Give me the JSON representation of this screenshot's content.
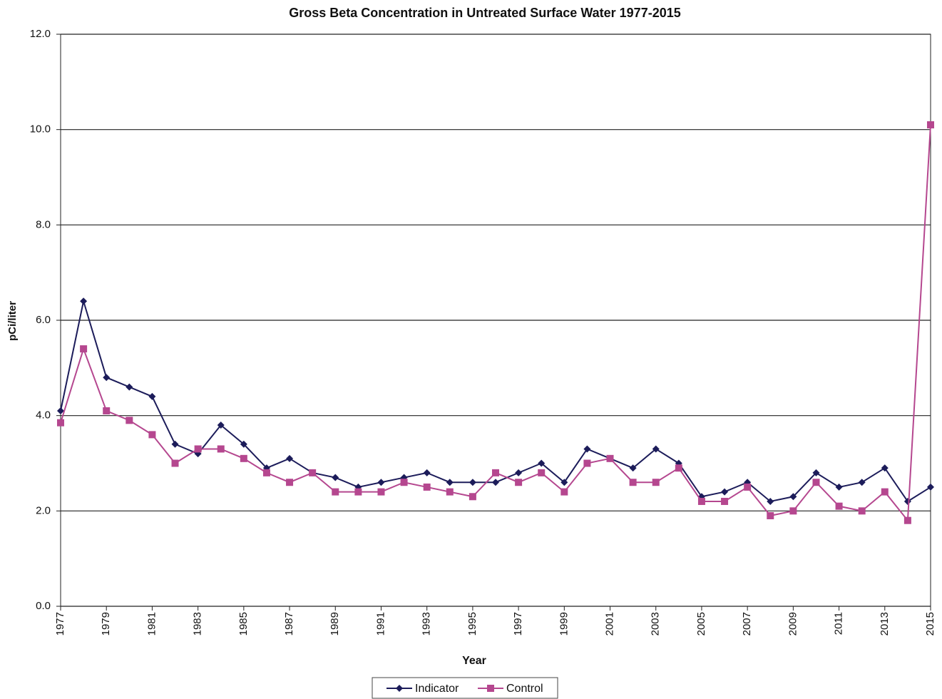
{
  "chart_data": {
    "type": "line",
    "title": "Gross Beta Concentration in Untreated Surface Water 1977-2015",
    "xlabel": "Year",
    "ylabel": "pCi/liter",
    "x": [
      1977,
      1978,
      1979,
      1980,
      1981,
      1982,
      1983,
      1984,
      1985,
      1986,
      1987,
      1988,
      1989,
      1990,
      1991,
      1992,
      1993,
      1994,
      1995,
      1996,
      1997,
      1998,
      1999,
      2000,
      2001,
      2002,
      2003,
      2004,
      2005,
      2006,
      2007,
      2008,
      2009,
      2010,
      2011,
      2012,
      2013,
      2014,
      2015
    ],
    "series": [
      {
        "name": "Indicator",
        "color": "#1c1c5a",
        "marker": "diamond",
        "values": [
          4.1,
          6.4,
          4.8,
          4.6,
          4.4,
          3.4,
          3.2,
          3.8,
          3.4,
          2.9,
          3.1,
          2.8,
          2.7,
          2.5,
          2.6,
          2.7,
          2.8,
          2.6,
          2.6,
          2.6,
          2.8,
          3.0,
          2.6,
          3.3,
          3.1,
          2.9,
          3.3,
          3.0,
          2.3,
          2.4,
          2.6,
          2.2,
          2.3,
          2.8,
          2.5,
          2.6,
          2.9,
          2.2,
          2.5
        ]
      },
      {
        "name": "Control",
        "color": "#b5478f",
        "marker": "square",
        "values": [
          3.85,
          5.4,
          4.1,
          3.9,
          3.6,
          3.0,
          3.3,
          3.3,
          3.1,
          2.8,
          2.6,
          2.8,
          2.4,
          2.4,
          2.4,
          2.6,
          2.5,
          2.4,
          2.3,
          2.8,
          2.6,
          2.8,
          2.4,
          3.0,
          3.1,
          2.6,
          2.6,
          2.9,
          2.2,
          2.2,
          2.5,
          1.9,
          2.0,
          2.6,
          2.1,
          2.0,
          2.4,
          1.8,
          10.1
        ]
      }
    ],
    "xlim": [
      1977,
      2015
    ],
    "xticks": [
      1977,
      1979,
      1981,
      1983,
      1985,
      1987,
      1989,
      1991,
      1993,
      1995,
      1997,
      1999,
      2001,
      2003,
      2005,
      2007,
      2009,
      2011,
      2013,
      2015
    ],
    "ylim": [
      0,
      12
    ],
    "yticks": [
      {
        "value": 0,
        "label": "0.0"
      },
      {
        "value": 2,
        "label": "2.0"
      },
      {
        "value": 4,
        "label": "4.0"
      },
      {
        "value": 6,
        "label": "6.0"
      },
      {
        "value": 8,
        "label": "8.0"
      },
      {
        "value": 10,
        "label": "10.0"
      },
      {
        "value": 12,
        "label": "12.0"
      }
    ],
    "grid": true,
    "legend": "bottom"
  }
}
